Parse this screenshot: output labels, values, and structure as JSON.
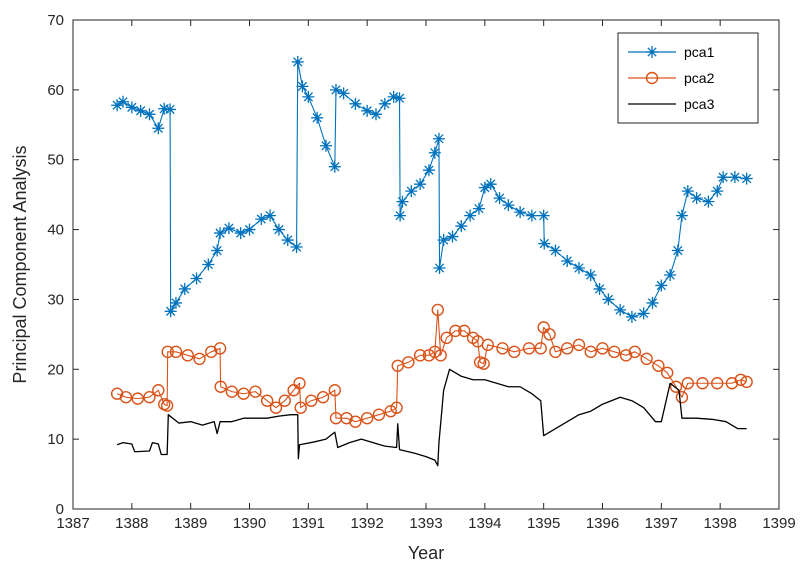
{
  "chart_data": {
    "type": "line",
    "xlabel": "Year",
    "ylabel": "Principal Component Analysis",
    "xlim": [
      1387,
      1399
    ],
    "ylim": [
      0,
      70
    ],
    "xticks": [
      "1387",
      "1388",
      "1389",
      "1390",
      "1391",
      "1392",
      "1393",
      "1394",
      "1395",
      "1396",
      "1397",
      "1398",
      "1399"
    ],
    "yticks": [
      "0",
      "10",
      "20",
      "30",
      "40",
      "50",
      "60",
      "70"
    ],
    "grid": false,
    "legend_position": "top-right",
    "series": [
      {
        "name": "pca1",
        "color": "#0072BD",
        "marker": "asterisk",
        "points": [
          [
            1387.75,
            57.8
          ],
          [
            1387.85,
            58.3
          ],
          [
            1388.0,
            57.5
          ],
          [
            1388.15,
            57.0
          ],
          [
            1388.3,
            56.5
          ],
          [
            1388.45,
            54.5
          ],
          [
            1388.55,
            57.3
          ],
          [
            1388.65,
            57.2
          ],
          [
            1388.66,
            28.3
          ],
          [
            1388.75,
            29.5
          ],
          [
            1388.9,
            31.5
          ],
          [
            1389.1,
            33.0
          ],
          [
            1389.3,
            35.0
          ],
          [
            1389.45,
            37.0
          ],
          [
            1389.5,
            39.5
          ],
          [
            1389.65,
            40.2
          ],
          [
            1389.85,
            39.5
          ],
          [
            1390.0,
            40.0
          ],
          [
            1390.2,
            41.5
          ],
          [
            1390.35,
            42.0
          ],
          [
            1390.5,
            40.0
          ],
          [
            1390.65,
            38.5
          ],
          [
            1390.8,
            37.5
          ],
          [
            1390.82,
            64.0
          ],
          [
            1390.9,
            60.5
          ],
          [
            1391.0,
            59.0
          ],
          [
            1391.15,
            56.0
          ],
          [
            1391.3,
            52.0
          ],
          [
            1391.45,
            49.0
          ],
          [
            1391.47,
            60.0
          ],
          [
            1391.6,
            59.5
          ],
          [
            1391.8,
            58.0
          ],
          [
            1392.0,
            57.0
          ],
          [
            1392.15,
            56.5
          ],
          [
            1392.3,
            58.0
          ],
          [
            1392.45,
            59.0
          ],
          [
            1392.55,
            58.8
          ],
          [
            1392.56,
            42.0
          ],
          [
            1392.6,
            44.0
          ],
          [
            1392.75,
            45.5
          ],
          [
            1392.9,
            46.5
          ],
          [
            1393.05,
            48.5
          ],
          [
            1393.15,
            51.0
          ],
          [
            1393.22,
            53.0
          ],
          [
            1393.23,
            34.5
          ],
          [
            1393.3,
            38.5
          ],
          [
            1393.45,
            39.0
          ],
          [
            1393.6,
            40.5
          ],
          [
            1393.75,
            42.0
          ],
          [
            1393.9,
            43.0
          ],
          [
            1394.0,
            46.0
          ],
          [
            1394.1,
            46.5
          ],
          [
            1394.25,
            44.5
          ],
          [
            1394.4,
            43.5
          ],
          [
            1394.6,
            42.5
          ],
          [
            1394.8,
            42.0
          ],
          [
            1395.0,
            42.0
          ],
          [
            1395.01,
            38.0
          ],
          [
            1395.2,
            37.0
          ],
          [
            1395.4,
            35.5
          ],
          [
            1395.6,
            34.5
          ],
          [
            1395.8,
            33.5
          ],
          [
            1395.95,
            31.5
          ],
          [
            1396.1,
            30.0
          ],
          [
            1396.3,
            28.5
          ],
          [
            1396.5,
            27.5
          ],
          [
            1396.7,
            28.0
          ],
          [
            1396.85,
            29.5
          ],
          [
            1397.0,
            32.0
          ],
          [
            1397.15,
            33.5
          ],
          [
            1397.28,
            37.0
          ],
          [
            1397.35,
            42.0
          ],
          [
            1397.45,
            45.5
          ],
          [
            1397.6,
            44.5
          ],
          [
            1397.8,
            44.0
          ],
          [
            1397.95,
            45.5
          ],
          [
            1398.05,
            47.5
          ],
          [
            1398.25,
            47.5
          ],
          [
            1398.45,
            47.3
          ]
        ]
      },
      {
        "name": "pca2",
        "color": "#D95319",
        "marker": "circle",
        "points": [
          [
            1387.75,
            16.5
          ],
          [
            1387.9,
            16.0
          ],
          [
            1388.1,
            15.8
          ],
          [
            1388.3,
            16.0
          ],
          [
            1388.45,
            17.0
          ],
          [
            1388.55,
            15.0
          ],
          [
            1388.6,
            14.8
          ],
          [
            1388.61,
            22.5
          ],
          [
            1388.75,
            22.5
          ],
          [
            1388.95,
            22.0
          ],
          [
            1389.15,
            21.5
          ],
          [
            1389.35,
            22.5
          ],
          [
            1389.5,
            23.0
          ],
          [
            1389.51,
            17.5
          ],
          [
            1389.7,
            16.8
          ],
          [
            1389.9,
            16.5
          ],
          [
            1390.1,
            16.8
          ],
          [
            1390.3,
            15.5
          ],
          [
            1390.45,
            14.5
          ],
          [
            1390.6,
            15.5
          ],
          [
            1390.75,
            17.0
          ],
          [
            1390.85,
            18.0
          ],
          [
            1390.87,
            14.5
          ],
          [
            1391.05,
            15.5
          ],
          [
            1391.25,
            16.0
          ],
          [
            1391.45,
            17.0
          ],
          [
            1391.47,
            13.0
          ],
          [
            1391.65,
            13.0
          ],
          [
            1391.8,
            12.5
          ],
          [
            1392.0,
            13.0
          ],
          [
            1392.2,
            13.5
          ],
          [
            1392.4,
            14.0
          ],
          [
            1392.5,
            14.5
          ],
          [
            1392.52,
            20.5
          ],
          [
            1392.7,
            21.0
          ],
          [
            1392.9,
            22.0
          ],
          [
            1393.05,
            22.0
          ],
          [
            1393.15,
            22.5
          ],
          [
            1393.2,
            28.5
          ],
          [
            1393.25,
            22.0
          ],
          [
            1393.35,
            24.5
          ],
          [
            1393.5,
            25.5
          ],
          [
            1393.65,
            25.5
          ],
          [
            1393.8,
            24.5
          ],
          [
            1393.88,
            24.0
          ],
          [
            1393.92,
            21.0
          ],
          [
            1393.98,
            20.8
          ],
          [
            1394.05,
            23.5
          ],
          [
            1394.3,
            23.0
          ],
          [
            1394.5,
            22.5
          ],
          [
            1394.75,
            23.0
          ],
          [
            1394.95,
            23.0
          ],
          [
            1395.0,
            26.0
          ],
          [
            1395.1,
            25.0
          ],
          [
            1395.2,
            22.5
          ],
          [
            1395.4,
            23.0
          ],
          [
            1395.6,
            23.5
          ],
          [
            1395.8,
            22.5
          ],
          [
            1396.0,
            23.0
          ],
          [
            1396.2,
            22.5
          ],
          [
            1396.4,
            22.0
          ],
          [
            1396.55,
            22.5
          ],
          [
            1396.75,
            21.5
          ],
          [
            1396.95,
            20.5
          ],
          [
            1397.1,
            19.5
          ],
          [
            1397.25,
            17.5
          ],
          [
            1397.35,
            16.0
          ],
          [
            1397.45,
            18.0
          ],
          [
            1397.7,
            18.0
          ],
          [
            1397.95,
            18.0
          ],
          [
            1398.2,
            18.0
          ],
          [
            1398.35,
            18.5
          ],
          [
            1398.45,
            18.2
          ]
        ]
      },
      {
        "name": "pca3",
        "color": "#000000",
        "marker": "none",
        "points": [
          [
            1387.75,
            9.2
          ],
          [
            1387.85,
            9.5
          ],
          [
            1388.0,
            9.3
          ],
          [
            1388.05,
            8.2
          ],
          [
            1388.3,
            8.3
          ],
          [
            1388.35,
            9.5
          ],
          [
            1388.45,
            9.3
          ],
          [
            1388.5,
            7.8
          ],
          [
            1388.6,
            7.8
          ],
          [
            1388.62,
            13.5
          ],
          [
            1388.8,
            12.3
          ],
          [
            1389.0,
            12.5
          ],
          [
            1389.2,
            12.0
          ],
          [
            1389.4,
            12.5
          ],
          [
            1389.45,
            10.8
          ],
          [
            1389.5,
            12.5
          ],
          [
            1389.7,
            12.5
          ],
          [
            1389.9,
            13.0
          ],
          [
            1390.1,
            13.0
          ],
          [
            1390.3,
            13.0
          ],
          [
            1390.5,
            13.3
          ],
          [
            1390.7,
            13.5
          ],
          [
            1390.82,
            13.5
          ],
          [
            1390.83,
            7.2
          ],
          [
            1390.85,
            9.2
          ],
          [
            1391.1,
            9.6
          ],
          [
            1391.3,
            10.0
          ],
          [
            1391.45,
            11.0
          ],
          [
            1391.5,
            8.8
          ],
          [
            1391.7,
            9.5
          ],
          [
            1391.9,
            10.0
          ],
          [
            1392.1,
            9.5
          ],
          [
            1392.3,
            9.0
          ],
          [
            1392.5,
            8.8
          ],
          [
            1392.52,
            12.2
          ],
          [
            1392.55,
            8.5
          ],
          [
            1392.8,
            8.0
          ],
          [
            1393.0,
            7.5
          ],
          [
            1393.15,
            7.0
          ],
          [
            1393.2,
            6.2
          ],
          [
            1393.22,
            9.5
          ],
          [
            1393.3,
            17.0
          ],
          [
            1393.4,
            20.0
          ],
          [
            1393.6,
            19.0
          ],
          [
            1393.8,
            18.5
          ],
          [
            1394.0,
            18.5
          ],
          [
            1394.2,
            18.0
          ],
          [
            1394.4,
            17.5
          ],
          [
            1394.6,
            17.5
          ],
          [
            1394.8,
            16.5
          ],
          [
            1394.95,
            15.5
          ],
          [
            1395.0,
            10.5
          ],
          [
            1395.2,
            11.5
          ],
          [
            1395.4,
            12.5
          ],
          [
            1395.6,
            13.5
          ],
          [
            1395.8,
            14.0
          ],
          [
            1396.0,
            15.0
          ],
          [
            1396.3,
            16.0
          ],
          [
            1396.5,
            15.5
          ],
          [
            1396.7,
            14.5
          ],
          [
            1396.9,
            12.5
          ],
          [
            1397.0,
            12.5
          ],
          [
            1397.15,
            18.0
          ],
          [
            1397.3,
            17.0
          ],
          [
            1397.35,
            13.0
          ],
          [
            1397.6,
            13.0
          ],
          [
            1397.9,
            12.8
          ],
          [
            1398.1,
            12.5
          ],
          [
            1398.3,
            11.5
          ],
          [
            1398.45,
            11.5
          ]
        ]
      }
    ]
  }
}
